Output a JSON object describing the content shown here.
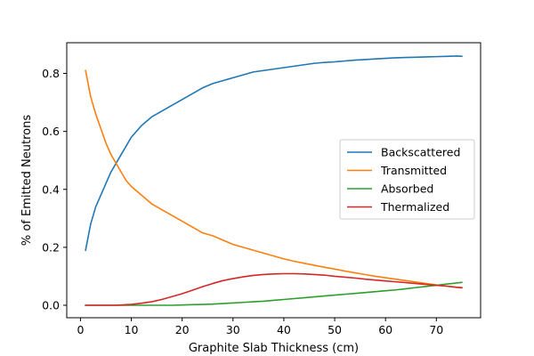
{
  "chart_data": {
    "type": "line",
    "title": "",
    "xlabel": "Graphite Slab Thickness (cm)",
    "ylabel": "% of Emitted Neutrons",
    "xlim": [
      -2.7,
      78.7
    ],
    "ylim": [
      -0.043,
      0.906
    ],
    "xticks": [
      0,
      10,
      20,
      30,
      40,
      50,
      60,
      70
    ],
    "xtick_labels": [
      "0",
      "10",
      "20",
      "30",
      "40",
      "50",
      "60",
      "70"
    ],
    "yticks": [
      0.0,
      0.2,
      0.4,
      0.6,
      0.8
    ],
    "ytick_labels": [
      "0.0",
      "0.2",
      "0.4",
      "0.6",
      "0.8"
    ],
    "grid": false,
    "legend": {
      "position": "center-right"
    },
    "x": [
      1,
      2,
      3,
      4,
      5,
      6,
      7,
      8,
      9,
      10,
      12,
      14,
      16,
      18,
      20,
      22,
      24,
      26,
      28,
      30,
      32,
      34,
      36,
      38,
      40,
      42,
      44,
      46,
      48,
      50,
      52,
      54,
      56,
      58,
      60,
      62,
      64,
      66,
      68,
      70,
      72,
      74,
      75
    ],
    "series": [
      {
        "name": "Backscattered",
        "color": "#1f77b4",
        "values": [
          0.19,
          0.28,
          0.34,
          0.38,
          0.42,
          0.46,
          0.49,
          0.52,
          0.55,
          0.58,
          0.62,
          0.65,
          0.67,
          0.69,
          0.71,
          0.73,
          0.75,
          0.765,
          0.775,
          0.785,
          0.795,
          0.805,
          0.81,
          0.815,
          0.82,
          0.825,
          0.83,
          0.835,
          0.838,
          0.84,
          0.843,
          0.846,
          0.848,
          0.85,
          0.852,
          0.854,
          0.855,
          0.856,
          0.857,
          0.858,
          0.859,
          0.86,
          0.859
        ]
      },
      {
        "name": "Transmitted",
        "color": "#ff7f0e",
        "values": [
          0.81,
          0.72,
          0.66,
          0.61,
          0.56,
          0.52,
          0.49,
          0.46,
          0.43,
          0.41,
          0.38,
          0.35,
          0.33,
          0.31,
          0.29,
          0.27,
          0.25,
          0.24,
          0.225,
          0.21,
          0.2,
          0.19,
          0.18,
          0.17,
          0.16,
          0.152,
          0.145,
          0.138,
          0.131,
          0.125,
          0.118,
          0.112,
          0.106,
          0.1,
          0.095,
          0.09,
          0.085,
          0.08,
          0.075,
          0.07,
          0.066,
          0.062,
          0.06
        ]
      },
      {
        "name": "Absorbed",
        "color": "#2ca02c",
        "values": [
          0.0,
          0.0,
          0.0,
          0.0,
          0.0,
          0.0,
          0.0,
          0.0,
          0.0,
          0.0,
          0.0,
          0.0,
          0.0,
          0.0,
          0.001,
          0.002,
          0.003,
          0.004,
          0.006,
          0.008,
          0.01,
          0.012,
          0.014,
          0.017,
          0.02,
          0.023,
          0.026,
          0.029,
          0.032,
          0.035,
          0.038,
          0.041,
          0.044,
          0.047,
          0.05,
          0.053,
          0.057,
          0.061,
          0.065,
          0.069,
          0.073,
          0.077,
          0.079
        ]
      },
      {
        "name": "Thermalized",
        "color": "#d62728",
        "values": [
          0.0,
          0.0,
          0.0,
          0.0,
          0.0,
          0.0,
          0.0,
          0.001,
          0.002,
          0.003,
          0.007,
          0.012,
          0.02,
          0.03,
          0.04,
          0.052,
          0.064,
          0.075,
          0.085,
          0.092,
          0.098,
          0.103,
          0.106,
          0.108,
          0.109,
          0.109,
          0.108,
          0.106,
          0.104,
          0.1,
          0.097,
          0.094,
          0.09,
          0.087,
          0.084,
          0.081,
          0.078,
          0.075,
          0.072,
          0.069,
          0.066,
          0.062,
          0.061
        ]
      }
    ]
  }
}
